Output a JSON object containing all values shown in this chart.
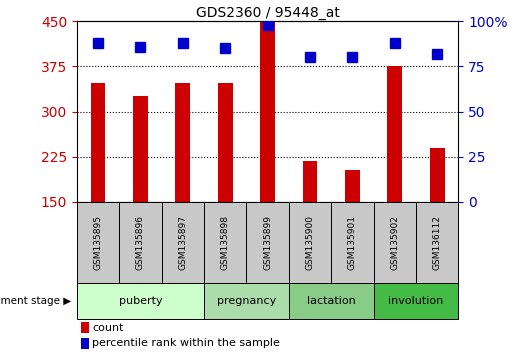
{
  "title": "GDS2360 / 95448_at",
  "samples": [
    "GSM135895",
    "GSM135896",
    "GSM135897",
    "GSM135898",
    "GSM135899",
    "GSM135900",
    "GSM135901",
    "GSM135902",
    "GSM136112"
  ],
  "counts": [
    348,
    325,
    348,
    348,
    448,
    218,
    203,
    375,
    240
  ],
  "percentile_ranks": [
    88,
    86,
    88,
    85,
    98,
    80,
    80,
    88,
    82
  ],
  "ylim_left": [
    150,
    450
  ],
  "ylim_right": [
    0,
    100
  ],
  "yticks_left": [
    150,
    225,
    300,
    375,
    450
  ],
  "yticks_right": [
    0,
    25,
    50,
    75,
    100
  ],
  "bar_color": "#cc0000",
  "dot_color": "#0000cc",
  "groups": [
    {
      "label": "puberty",
      "start": 0,
      "end": 3,
      "color": "#ccffcc"
    },
    {
      "label": "pregnancy",
      "start": 3,
      "end": 5,
      "color": "#aaddaa"
    },
    {
      "label": "lactation",
      "start": 5,
      "end": 7,
      "color": "#88cc88"
    },
    {
      "label": "involution",
      "start": 7,
      "end": 9,
      "color": "#44bb44"
    }
  ],
  "xlabel_stage": "development stage",
  "legend_count": "count",
  "legend_percentile": "percentile rank within the sample",
  "bg_color": "#ffffff",
  "tick_label_color_left": "#cc0000",
  "tick_label_color_right": "#0000cc",
  "sample_box_color": "#c8c8c8",
  "bar_width": 0.35,
  "dot_size": 7
}
